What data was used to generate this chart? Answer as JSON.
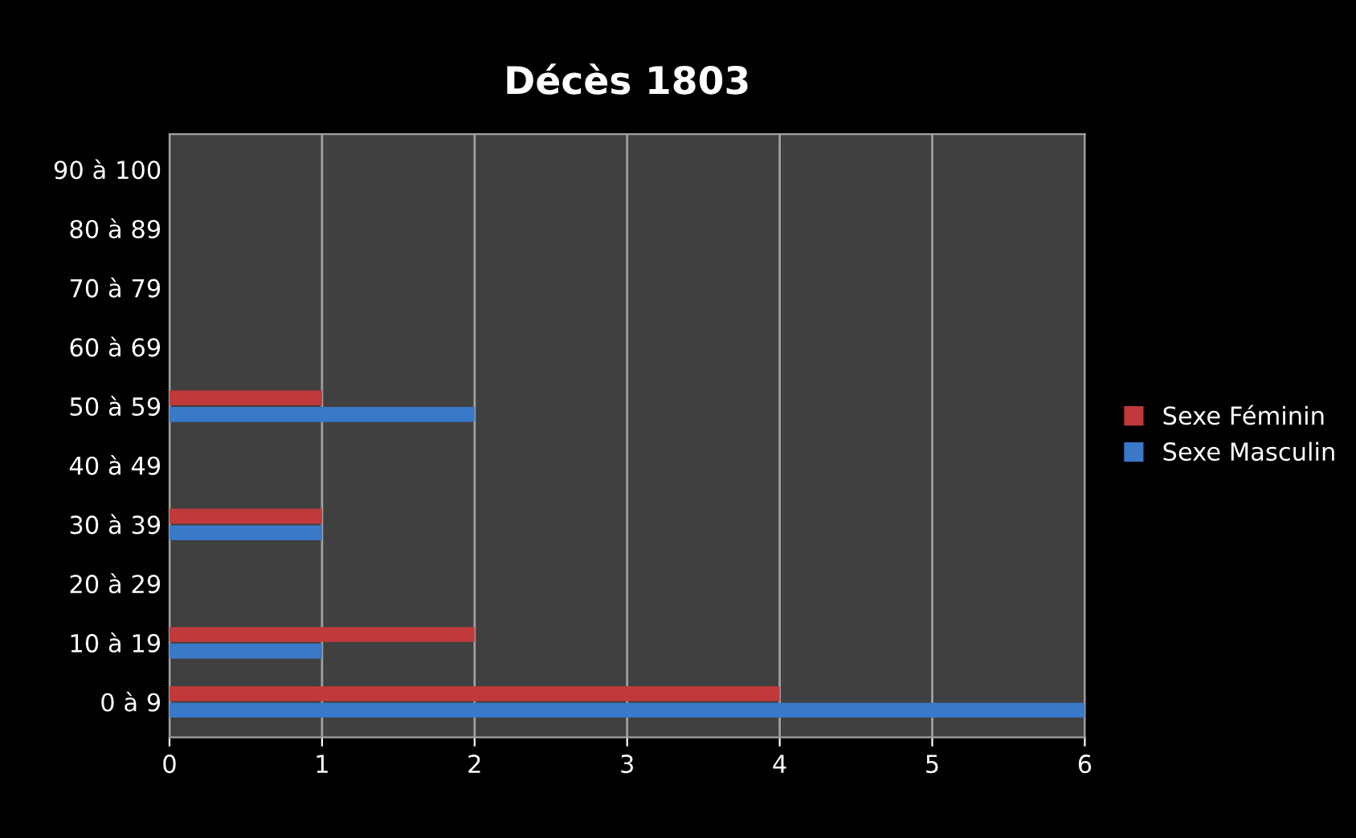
{
  "chart_data": {
    "type": "bar",
    "orientation": "horizontal",
    "title": "Décès 1803",
    "categories": [
      "90 à 100",
      "80 à 89",
      "70 à 79",
      "60 à 69",
      "50 à 59",
      "40 à 49",
      "30 à 39",
      "20 à 29",
      "10 à 19",
      "0 à 9"
    ],
    "series": [
      {
        "name": "Sexe Féminin",
        "color": "#c0393b",
        "values": [
          0,
          0,
          0,
          0,
          1,
          0,
          1,
          0,
          2,
          4
        ]
      },
      {
        "name": "Sexe Masculin",
        "color": "#3a78c8",
        "values": [
          0,
          0,
          0,
          0,
          2,
          0,
          1,
          0,
          1,
          6
        ]
      }
    ],
    "xlim": [
      0,
      6
    ],
    "xticks": [
      0,
      1,
      2,
      3,
      4,
      5,
      6
    ],
    "grid": "x",
    "legend": "right"
  }
}
